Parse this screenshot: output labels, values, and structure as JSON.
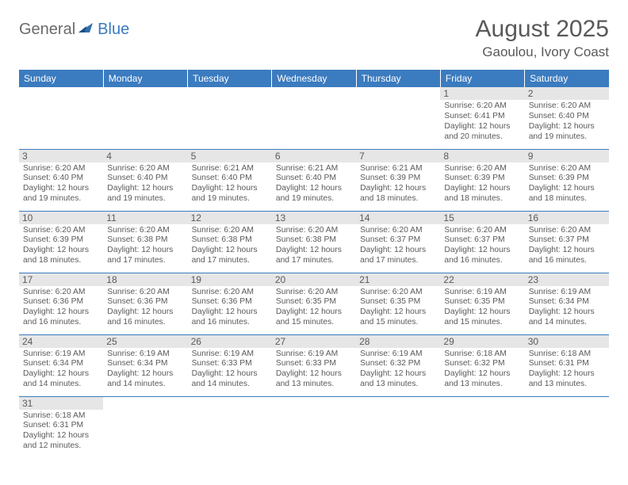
{
  "logo": {
    "part1": "General",
    "part2": "Blue"
  },
  "title": "August 2025",
  "location": "Gaoulou, Ivory Coast",
  "colors": {
    "header_bg": "#3b7bbf",
    "header_text": "#ffffff",
    "daynum_bg": "#e6e6e6",
    "text": "#5a5a5a",
    "body_bg": "#ffffff",
    "row_divider": "#3b7bbf"
  },
  "fonts": {
    "title_size_pt": 22,
    "location_size_pt": 13,
    "dayheader_size_pt": 9,
    "daynum_size_pt": 9,
    "info_size_pt": 7.7
  },
  "day_headers": [
    "Sunday",
    "Monday",
    "Tuesday",
    "Wednesday",
    "Thursday",
    "Friday",
    "Saturday"
  ],
  "weeks": [
    [
      null,
      null,
      null,
      null,
      null,
      {
        "n": "1",
        "sunrise": "Sunrise: 6:20 AM",
        "sunset": "Sunset: 6:41 PM",
        "daylight": "Daylight: 12 hours and 20 minutes."
      },
      {
        "n": "2",
        "sunrise": "Sunrise: 6:20 AM",
        "sunset": "Sunset: 6:40 PM",
        "daylight": "Daylight: 12 hours and 19 minutes."
      }
    ],
    [
      {
        "n": "3",
        "sunrise": "Sunrise: 6:20 AM",
        "sunset": "Sunset: 6:40 PM",
        "daylight": "Daylight: 12 hours and 19 minutes."
      },
      {
        "n": "4",
        "sunrise": "Sunrise: 6:20 AM",
        "sunset": "Sunset: 6:40 PM",
        "daylight": "Daylight: 12 hours and 19 minutes."
      },
      {
        "n": "5",
        "sunrise": "Sunrise: 6:21 AM",
        "sunset": "Sunset: 6:40 PM",
        "daylight": "Daylight: 12 hours and 19 minutes."
      },
      {
        "n": "6",
        "sunrise": "Sunrise: 6:21 AM",
        "sunset": "Sunset: 6:40 PM",
        "daylight": "Daylight: 12 hours and 19 minutes."
      },
      {
        "n": "7",
        "sunrise": "Sunrise: 6:21 AM",
        "sunset": "Sunset: 6:39 PM",
        "daylight": "Daylight: 12 hours and 18 minutes."
      },
      {
        "n": "8",
        "sunrise": "Sunrise: 6:20 AM",
        "sunset": "Sunset: 6:39 PM",
        "daylight": "Daylight: 12 hours and 18 minutes."
      },
      {
        "n": "9",
        "sunrise": "Sunrise: 6:20 AM",
        "sunset": "Sunset: 6:39 PM",
        "daylight": "Daylight: 12 hours and 18 minutes."
      }
    ],
    [
      {
        "n": "10",
        "sunrise": "Sunrise: 6:20 AM",
        "sunset": "Sunset: 6:39 PM",
        "daylight": "Daylight: 12 hours and 18 minutes."
      },
      {
        "n": "11",
        "sunrise": "Sunrise: 6:20 AM",
        "sunset": "Sunset: 6:38 PM",
        "daylight": "Daylight: 12 hours and 17 minutes."
      },
      {
        "n": "12",
        "sunrise": "Sunrise: 6:20 AM",
        "sunset": "Sunset: 6:38 PM",
        "daylight": "Daylight: 12 hours and 17 minutes."
      },
      {
        "n": "13",
        "sunrise": "Sunrise: 6:20 AM",
        "sunset": "Sunset: 6:38 PM",
        "daylight": "Daylight: 12 hours and 17 minutes."
      },
      {
        "n": "14",
        "sunrise": "Sunrise: 6:20 AM",
        "sunset": "Sunset: 6:37 PM",
        "daylight": "Daylight: 12 hours and 17 minutes."
      },
      {
        "n": "15",
        "sunrise": "Sunrise: 6:20 AM",
        "sunset": "Sunset: 6:37 PM",
        "daylight": "Daylight: 12 hours and 16 minutes."
      },
      {
        "n": "16",
        "sunrise": "Sunrise: 6:20 AM",
        "sunset": "Sunset: 6:37 PM",
        "daylight": "Daylight: 12 hours and 16 minutes."
      }
    ],
    [
      {
        "n": "17",
        "sunrise": "Sunrise: 6:20 AM",
        "sunset": "Sunset: 6:36 PM",
        "daylight": "Daylight: 12 hours and 16 minutes."
      },
      {
        "n": "18",
        "sunrise": "Sunrise: 6:20 AM",
        "sunset": "Sunset: 6:36 PM",
        "daylight": "Daylight: 12 hours and 16 minutes."
      },
      {
        "n": "19",
        "sunrise": "Sunrise: 6:20 AM",
        "sunset": "Sunset: 6:36 PM",
        "daylight": "Daylight: 12 hours and 16 minutes."
      },
      {
        "n": "20",
        "sunrise": "Sunrise: 6:20 AM",
        "sunset": "Sunset: 6:35 PM",
        "daylight": "Daylight: 12 hours and 15 minutes."
      },
      {
        "n": "21",
        "sunrise": "Sunrise: 6:20 AM",
        "sunset": "Sunset: 6:35 PM",
        "daylight": "Daylight: 12 hours and 15 minutes."
      },
      {
        "n": "22",
        "sunrise": "Sunrise: 6:19 AM",
        "sunset": "Sunset: 6:35 PM",
        "daylight": "Daylight: 12 hours and 15 minutes."
      },
      {
        "n": "23",
        "sunrise": "Sunrise: 6:19 AM",
        "sunset": "Sunset: 6:34 PM",
        "daylight": "Daylight: 12 hours and 14 minutes."
      }
    ],
    [
      {
        "n": "24",
        "sunrise": "Sunrise: 6:19 AM",
        "sunset": "Sunset: 6:34 PM",
        "daylight": "Daylight: 12 hours and 14 minutes."
      },
      {
        "n": "25",
        "sunrise": "Sunrise: 6:19 AM",
        "sunset": "Sunset: 6:34 PM",
        "daylight": "Daylight: 12 hours and 14 minutes."
      },
      {
        "n": "26",
        "sunrise": "Sunrise: 6:19 AM",
        "sunset": "Sunset: 6:33 PM",
        "daylight": "Daylight: 12 hours and 14 minutes."
      },
      {
        "n": "27",
        "sunrise": "Sunrise: 6:19 AM",
        "sunset": "Sunset: 6:33 PM",
        "daylight": "Daylight: 12 hours and 13 minutes."
      },
      {
        "n": "28",
        "sunrise": "Sunrise: 6:19 AM",
        "sunset": "Sunset: 6:32 PM",
        "daylight": "Daylight: 12 hours and 13 minutes."
      },
      {
        "n": "29",
        "sunrise": "Sunrise: 6:18 AM",
        "sunset": "Sunset: 6:32 PM",
        "daylight": "Daylight: 12 hours and 13 minutes."
      },
      {
        "n": "30",
        "sunrise": "Sunrise: 6:18 AM",
        "sunset": "Sunset: 6:31 PM",
        "daylight": "Daylight: 12 hours and 13 minutes."
      }
    ],
    [
      {
        "n": "31",
        "sunrise": "Sunrise: 6:18 AM",
        "sunset": "Sunset: 6:31 PM",
        "daylight": "Daylight: 12 hours and 12 minutes."
      },
      null,
      null,
      null,
      null,
      null,
      null
    ]
  ]
}
